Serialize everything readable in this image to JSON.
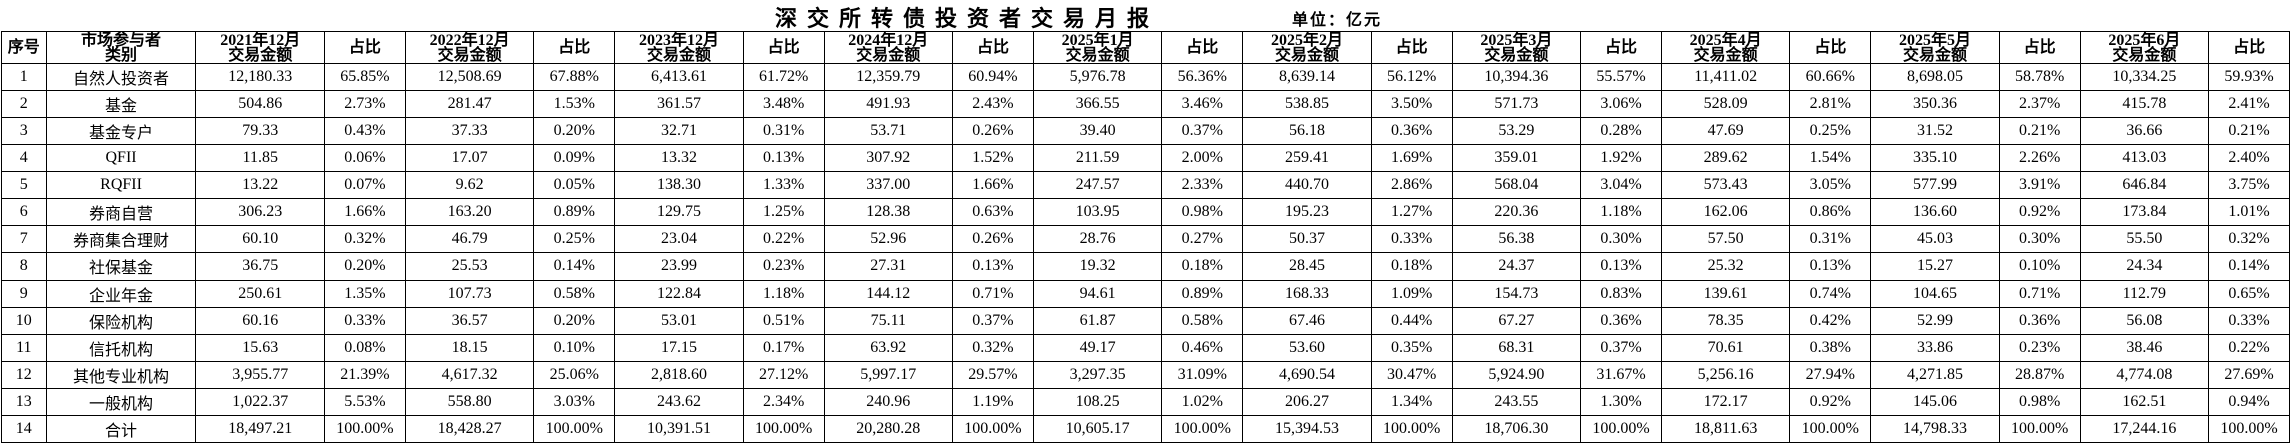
{
  "chart_data": {
    "type": "table",
    "title": "深交所转债投资者交易月报",
    "unit_label": "单位：亿元",
    "headers": {
      "seq": "序号",
      "category": "市场参与者\n类别",
      "months": [
        "2021年12月",
        "2022年12月",
        "2023年12月",
        "2024年12月",
        "2025年1月",
        "2025年2月",
        "2025年3月",
        "2025年4月",
        "2025年5月",
        "2025年6月"
      ],
      "amount_sublabel": "交易金额",
      "pct": "占比"
    },
    "rows": [
      {
        "seq": "1",
        "category": "自然人投资者",
        "cells": [
          "12,180.33",
          "65.85%",
          "12,508.69",
          "67.88%",
          "6,413.61",
          "61.72%",
          "12,359.79",
          "60.94%",
          "5,976.78",
          "56.36%",
          "8,639.14",
          "56.12%",
          "10,394.36",
          "55.57%",
          "11,411.02",
          "60.66%",
          "8,698.05",
          "58.78%",
          "10,334.25",
          "59.93%"
        ]
      },
      {
        "seq": "2",
        "category": "基金",
        "cells": [
          "504.86",
          "2.73%",
          "281.47",
          "1.53%",
          "361.57",
          "3.48%",
          "491.93",
          "2.43%",
          "366.55",
          "3.46%",
          "538.85",
          "3.50%",
          "571.73",
          "3.06%",
          "528.09",
          "2.81%",
          "350.36",
          "2.37%",
          "415.78",
          "2.41%"
        ]
      },
      {
        "seq": "3",
        "category": "基金专户",
        "cells": [
          "79.33",
          "0.43%",
          "37.33",
          "0.20%",
          "32.71",
          "0.31%",
          "53.71",
          "0.26%",
          "39.40",
          "0.37%",
          "56.18",
          "0.36%",
          "53.29",
          "0.28%",
          "47.69",
          "0.25%",
          "31.52",
          "0.21%",
          "36.66",
          "0.21%"
        ]
      },
      {
        "seq": "4",
        "category": "QFII",
        "cells": [
          "11.85",
          "0.06%",
          "17.07",
          "0.09%",
          "13.32",
          "0.13%",
          "307.92",
          "1.52%",
          "211.59",
          "2.00%",
          "259.41",
          "1.69%",
          "359.01",
          "1.92%",
          "289.62",
          "1.54%",
          "335.10",
          "2.26%",
          "413.03",
          "2.40%"
        ]
      },
      {
        "seq": "5",
        "category": "RQFII",
        "cells": [
          "13.22",
          "0.07%",
          "9.62",
          "0.05%",
          "138.30",
          "1.33%",
          "337.00",
          "1.66%",
          "247.57",
          "2.33%",
          "440.70",
          "2.86%",
          "568.04",
          "3.04%",
          "573.43",
          "3.05%",
          "577.99",
          "3.91%",
          "646.84",
          "3.75%"
        ]
      },
      {
        "seq": "6",
        "category": "券商自营",
        "cells": [
          "306.23",
          "1.66%",
          "163.20",
          "0.89%",
          "129.75",
          "1.25%",
          "128.38",
          "0.63%",
          "103.95",
          "0.98%",
          "195.23",
          "1.27%",
          "220.36",
          "1.18%",
          "162.06",
          "0.86%",
          "136.60",
          "0.92%",
          "173.84",
          "1.01%"
        ]
      },
      {
        "seq": "7",
        "category": "券商集合理财",
        "cells": [
          "60.10",
          "0.32%",
          "46.79",
          "0.25%",
          "23.04",
          "0.22%",
          "52.96",
          "0.26%",
          "28.76",
          "0.27%",
          "50.37",
          "0.33%",
          "56.38",
          "0.30%",
          "57.50",
          "0.31%",
          "45.03",
          "0.30%",
          "55.50",
          "0.32%"
        ]
      },
      {
        "seq": "8",
        "category": "社保基金",
        "cells": [
          "36.75",
          "0.20%",
          "25.53",
          "0.14%",
          "23.99",
          "0.23%",
          "27.31",
          "0.13%",
          "19.32",
          "0.18%",
          "28.45",
          "0.18%",
          "24.37",
          "0.13%",
          "25.32",
          "0.13%",
          "15.27",
          "0.10%",
          "24.34",
          "0.14%"
        ]
      },
      {
        "seq": "9",
        "category": "企业年金",
        "cells": [
          "250.61",
          "1.35%",
          "107.73",
          "0.58%",
          "122.84",
          "1.18%",
          "144.12",
          "0.71%",
          "94.61",
          "0.89%",
          "168.33",
          "1.09%",
          "154.73",
          "0.83%",
          "139.61",
          "0.74%",
          "104.65",
          "0.71%",
          "112.79",
          "0.65%"
        ]
      },
      {
        "seq": "10",
        "category": "保险机构",
        "cells": [
          "60.16",
          "0.33%",
          "36.57",
          "0.20%",
          "53.01",
          "0.51%",
          "75.11",
          "0.37%",
          "61.87",
          "0.58%",
          "67.46",
          "0.44%",
          "67.27",
          "0.36%",
          "78.35",
          "0.42%",
          "52.99",
          "0.36%",
          "56.08",
          "0.33%"
        ]
      },
      {
        "seq": "11",
        "category": "信托机构",
        "cells": [
          "15.63",
          "0.08%",
          "18.15",
          "0.10%",
          "17.15",
          "0.17%",
          "63.92",
          "0.32%",
          "49.17",
          "0.46%",
          "53.60",
          "0.35%",
          "68.31",
          "0.37%",
          "70.61",
          "0.38%",
          "33.86",
          "0.23%",
          "38.46",
          "0.22%"
        ]
      },
      {
        "seq": "12",
        "category": "其他专业机构",
        "cells": [
          "3,955.77",
          "21.39%",
          "4,617.32",
          "25.06%",
          "2,818.60",
          "27.12%",
          "5,997.17",
          "29.57%",
          "3,297.35",
          "31.09%",
          "4,690.54",
          "30.47%",
          "5,924.90",
          "31.67%",
          "5,256.16",
          "27.94%",
          "4,271.85",
          "28.87%",
          "4,774.08",
          "27.69%"
        ]
      },
      {
        "seq": "13",
        "category": "一般机构",
        "cells": [
          "1,022.37",
          "5.53%",
          "558.80",
          "3.03%",
          "243.62",
          "2.34%",
          "240.96",
          "1.19%",
          "108.25",
          "1.02%",
          "206.27",
          "1.34%",
          "243.55",
          "1.30%",
          "172.17",
          "0.92%",
          "145.06",
          "0.98%",
          "162.51",
          "0.94%"
        ]
      },
      {
        "seq": "14",
        "category": "合计",
        "cells": [
          "18,497.21",
          "100.00%",
          "18,428.27",
          "100.00%",
          "10,391.51",
          "100.00%",
          "20,280.28",
          "100.00%",
          "10,605.17",
          "100.00%",
          "15,394.53",
          "100.00%",
          "18,706.30",
          "100.00%",
          "18,811.63",
          "100.00%",
          "14,798.33",
          "100.00%",
          "17,244.16",
          "100.00%"
        ]
      }
    ]
  }
}
